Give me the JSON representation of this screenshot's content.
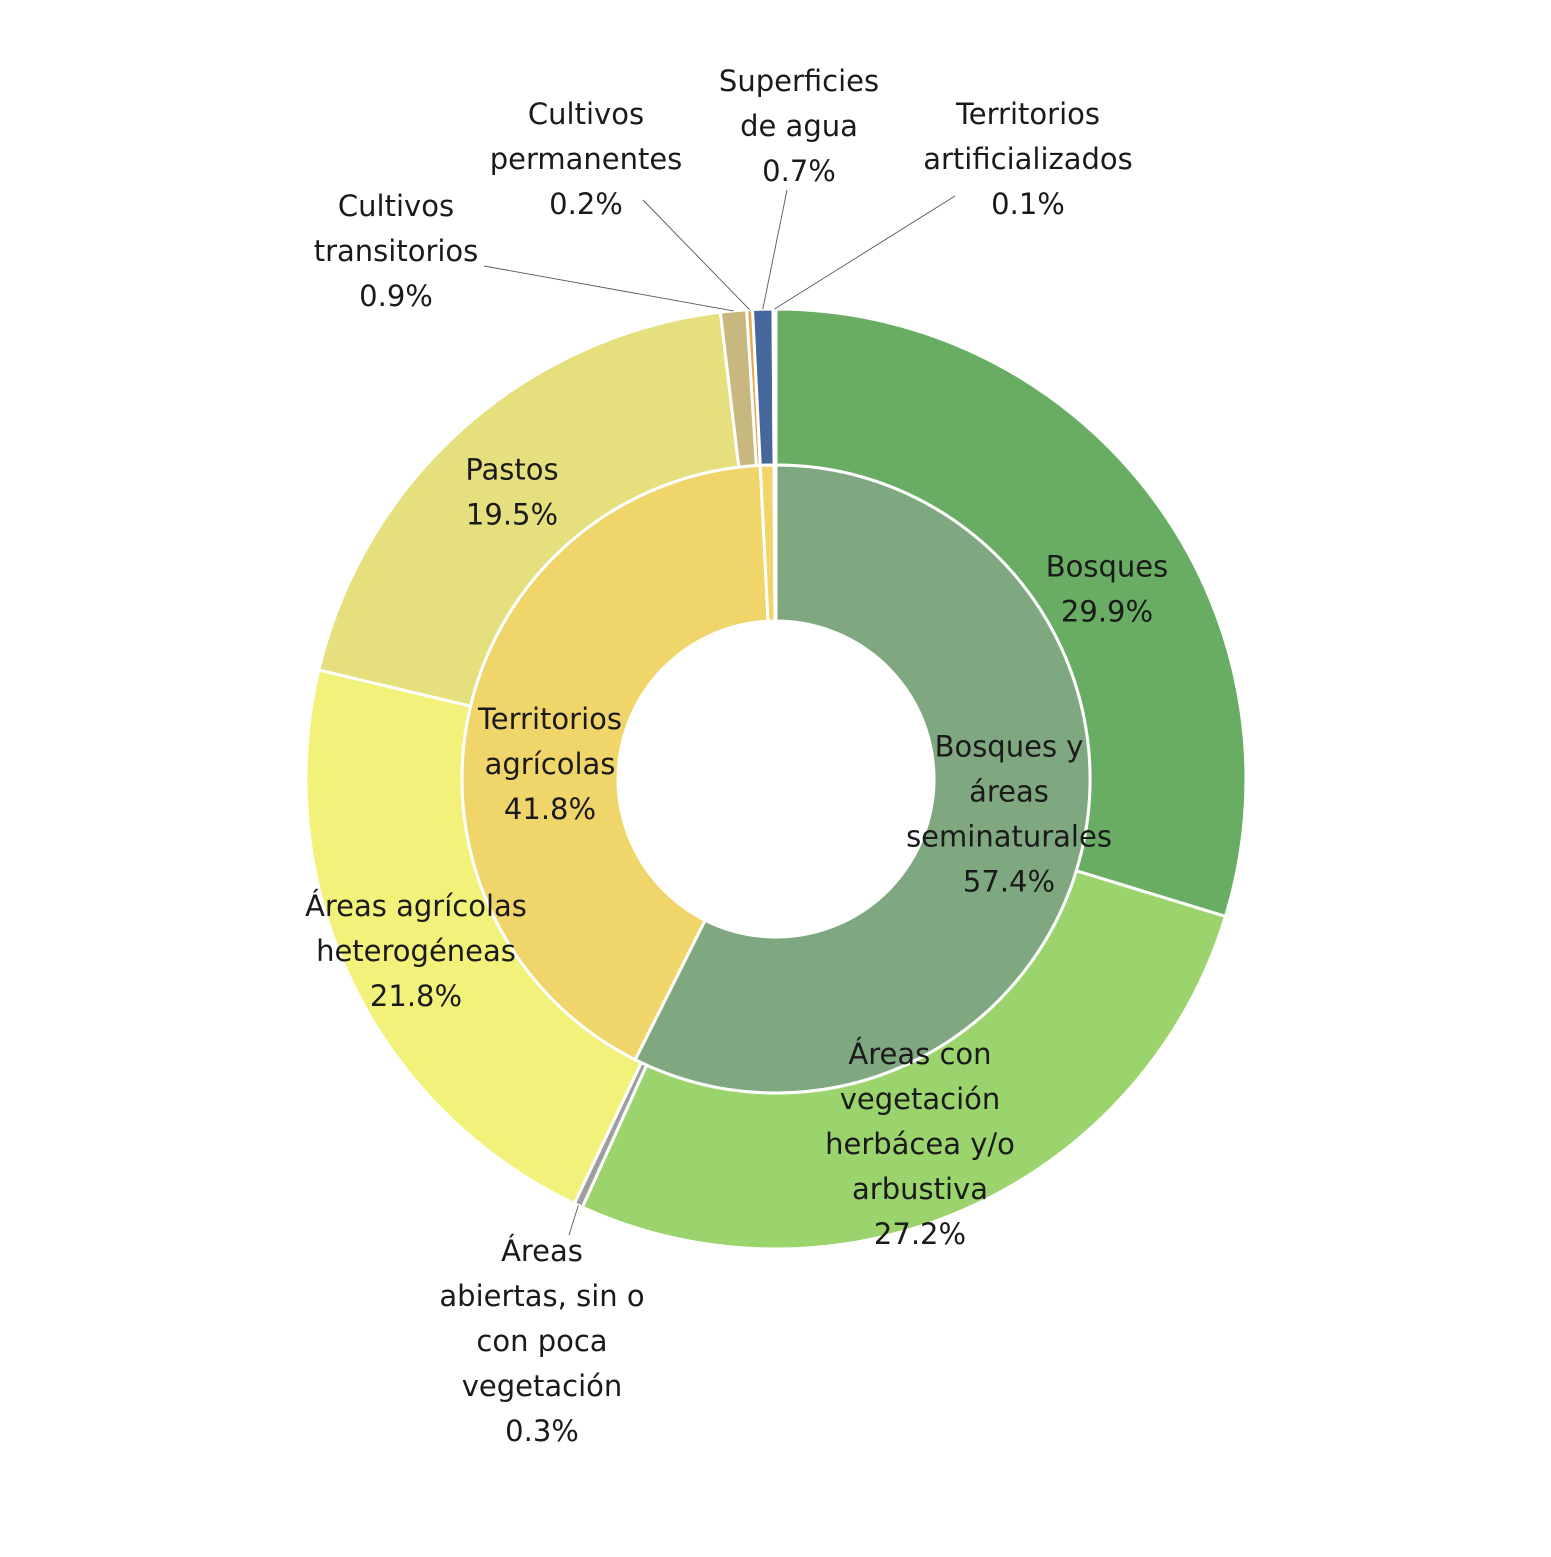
{
  "chart_data": {
    "type": "pie",
    "variant": "nested-donut",
    "title": "",
    "legend": "none",
    "inner_ring": [
      {
        "label": [
          "Bosques y",
          "áreas",
          "seminaturales"
        ],
        "value": 57.4,
        "value_label": "57.4%",
        "color": "#80a880"
      },
      {
        "label": [
          "Territorios",
          "agrícolas"
        ],
        "value": 41.8,
        "value_label": "41.8%",
        "color": "#f0d56b"
      },
      {
        "label": [
          "Superficies",
          "de agua"
        ],
        "value": 0.7,
        "value_label": "0.7%",
        "color": "#f0d56b"
      },
      {
        "label": [
          "Territorios",
          "artificializados"
        ],
        "value": 0.1,
        "value_label": "0.1%",
        "color": "#f0d56b"
      }
    ],
    "outer_ring": [
      {
        "label": [
          "Bosques"
        ],
        "value": 29.9,
        "value_label": "29.9%",
        "color": "#68ad63"
      },
      {
        "label": [
          "Áreas con",
          "vegetación",
          "herbácea y/o",
          "arbustiva"
        ],
        "value": 27.2,
        "value_label": "27.2%",
        "color": "#9bd46d"
      },
      {
        "label": [
          "Áreas",
          "abiertas, sin o",
          "con poca",
          "vegetación"
        ],
        "value": 0.3,
        "value_label": "0.3%",
        "color": "#9e9e9e"
      },
      {
        "label": [
          "Áreas agrícolas",
          "heterogéneas"
        ],
        "value": 21.8,
        "value_label": "21.8%",
        "color": "#f2f27a"
      },
      {
        "label": [
          "Pastos"
        ],
        "value": 19.5,
        "value_label": "19.5%",
        "color": "#e5df7e"
      },
      {
        "label": [
          "Cultivos",
          "transitorios"
        ],
        "value": 0.9,
        "value_label": "0.9%",
        "color": "#c8b77e"
      },
      {
        "label": [
          "Cultivos",
          "permanentes"
        ],
        "value": 0.2,
        "value_label": "0.2%",
        "color": "#e8a64f"
      },
      {
        "label": [
          "Superficies",
          "de agua"
        ],
        "value": 0.7,
        "value_label": "0.7%",
        "color": "#46679c"
      },
      {
        "label": [
          "Territorios",
          "artificializados"
        ],
        "value": 0.1,
        "value_label": "0.1%",
        "color": "#f0d56b"
      }
    ]
  }
}
